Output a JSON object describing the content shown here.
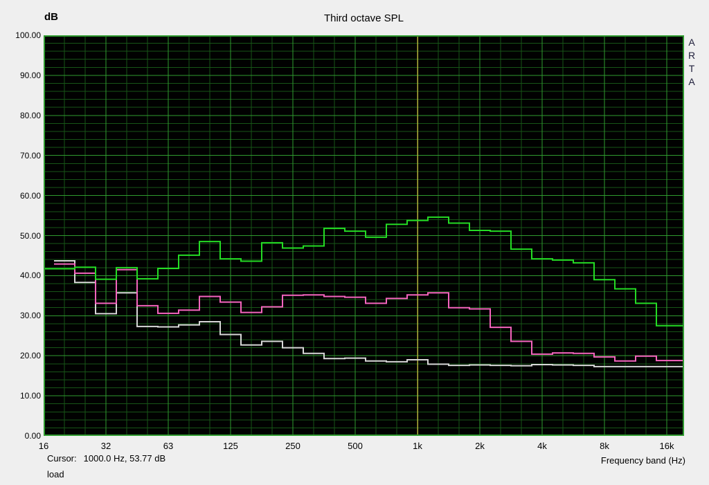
{
  "title": "Third octave SPL",
  "y_axis": {
    "label": "dB",
    "ticks": [
      "100.00",
      "90.00",
      "80.00",
      "70.00",
      "60.00",
      "50.00",
      "40.00",
      "30.00",
      "20.00",
      "10.00",
      "0.00"
    ]
  },
  "x_axis": {
    "label": "Frequency band (Hz)",
    "ticks": [
      "16",
      "32",
      "63",
      "125",
      "250",
      "500",
      "1k",
      "2k",
      "4k",
      "8k",
      "16k"
    ]
  },
  "watermark": "ARTA",
  "status": {
    "cursor_label": "Cursor:",
    "cursor_value": "1000.0 Hz, 53.77 dB",
    "curve_name": "load"
  },
  "colors": {
    "page_bg": "#efefef",
    "plot_bg": "#010101",
    "grid_minor": "#175517",
    "grid_major": "#2f9b2f",
    "plot_border": "#2f9b2f",
    "cursor_line": "#b4b43c",
    "series_green": "#24dc24",
    "series_magenta": "#f565be",
    "series_white": "#d8d8d8"
  },
  "chart_data": {
    "type": "line",
    "subtype": "third-octave-band step plot",
    "title": "Third octave SPL",
    "xlabel": "Frequency band (Hz)",
    "ylabel": "dB",
    "ylim": [
      0,
      100
    ],
    "y_major_step": 10,
    "y_minor_step": 2,
    "grid": true,
    "categories": [
      16,
      20,
      25,
      31.5,
      40,
      50,
      63,
      80,
      100,
      125,
      160,
      200,
      250,
      315,
      400,
      500,
      630,
      800,
      1000,
      1250,
      1600,
      2000,
      2500,
      3150,
      4000,
      5000,
      6300,
      8000,
      10000,
      12500,
      16000
    ],
    "series": [
      {
        "name": "green",
        "color": "#24dc24",
        "values": [
          41.7,
          41.7,
          42.1,
          39.1,
          42.0,
          39.2,
          41.8,
          45.1,
          48.5,
          44.2,
          43.6,
          48.2,
          46.9,
          47.4,
          51.8,
          51.1,
          49.6,
          52.8,
          53.77,
          54.6,
          53.1,
          51.3,
          51.1,
          46.6,
          44.2,
          43.9,
          43.2,
          39.0,
          36.7,
          33.1,
          27.5
        ]
      },
      {
        "name": "magenta",
        "color": "#f565be",
        "values": [
          null,
          42.9,
          40.6,
          33.1,
          41.5,
          32.5,
          30.6,
          31.4,
          34.8,
          33.4,
          30.8,
          32.2,
          35.1,
          35.2,
          34.8,
          34.6,
          33.1,
          34.3,
          35.2,
          35.7,
          32.0,
          31.7,
          27.1,
          23.6,
          20.4,
          20.7,
          20.6,
          19.7,
          18.7,
          19.9,
          18.8
        ]
      },
      {
        "name": "white",
        "color": "#d8d8d8",
        "values": [
          null,
          43.7,
          38.3,
          30.5,
          35.7,
          27.3,
          27.2,
          27.7,
          28.5,
          25.3,
          22.7,
          23.6,
          22.0,
          20.6,
          19.3,
          19.4,
          18.7,
          18.5,
          19.0,
          17.9,
          17.6,
          17.7,
          17.6,
          17.5,
          17.8,
          17.7,
          17.6,
          17.3,
          17.3,
          17.3,
          17.3
        ]
      }
    ],
    "cursor": {
      "freq_hz": 1000.0,
      "level_db": 53.77
    }
  }
}
